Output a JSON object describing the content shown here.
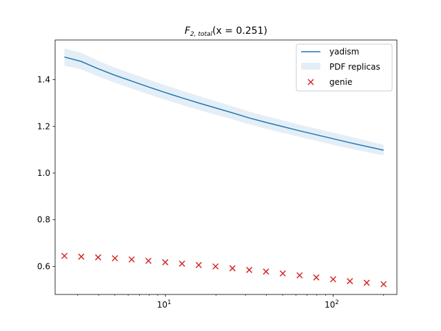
{
  "chart_data": {
    "type": "line",
    "title": {
      "base": "F",
      "sub": "2, total",
      "rest": "(x = 0.251)"
    },
    "xscale": "log",
    "xlim": [
      2.2,
      240
    ],
    "ylim": [
      0.48,
      1.57
    ],
    "x_ticks": [
      {
        "value": 10,
        "base": "10",
        "exp": "1"
      },
      {
        "value": 100,
        "base": "10",
        "exp": "2"
      }
    ],
    "y_ticks": [
      {
        "value": 0.6,
        "label": "0.6"
      },
      {
        "value": 0.8,
        "label": "0.8"
      },
      {
        "value": 1.0,
        "label": "1.0"
      },
      {
        "value": 1.2,
        "label": "1.2"
      },
      {
        "value": 1.4,
        "label": "1.4"
      }
    ],
    "legend": {
      "position": "top-right",
      "entries": [
        {
          "label": "yadism",
          "kind": "line"
        },
        {
          "label": "PDF replicas",
          "kind": "band"
        },
        {
          "label": "genie",
          "kind": "marker"
        }
      ]
    },
    "colors": {
      "line": "#1f77b4",
      "band": "#1f77b4",
      "marker": "#d62728"
    },
    "x": [
      2.5,
      3.15,
      3.97,
      5.0,
      6.29,
      7.92,
      9.98,
      12.56,
      15.8,
      19.9,
      25.1,
      31.6,
      39.8,
      50.1,
      63.1,
      79.4,
      100,
      125.9,
      158.5,
      200
    ],
    "series": [
      {
        "name": "yadism",
        "kind": "line",
        "values": [
          1.497,
          1.478,
          1.447,
          1.419,
          1.394,
          1.369,
          1.345,
          1.322,
          1.3,
          1.279,
          1.258,
          1.236,
          1.217,
          1.199,
          1.181,
          1.164,
          1.147,
          1.13,
          1.114,
          1.098
        ],
        "lower": [
          1.46,
          1.444,
          1.414,
          1.387,
          1.362,
          1.337,
          1.314,
          1.292,
          1.27,
          1.25,
          1.23,
          1.209,
          1.19,
          1.172,
          1.155,
          1.138,
          1.121,
          1.105,
          1.09,
          1.076
        ],
        "upper": [
          1.534,
          1.515,
          1.481,
          1.452,
          1.426,
          1.401,
          1.376,
          1.353,
          1.33,
          1.308,
          1.286,
          1.263,
          1.244,
          1.226,
          1.207,
          1.19,
          1.173,
          1.156,
          1.139,
          1.121
        ]
      },
      {
        "name": "genie",
        "kind": "marker",
        "values": [
          0.645,
          0.642,
          0.639,
          0.635,
          0.63,
          0.624,
          0.618,
          0.612,
          0.606,
          0.6,
          0.592,
          0.585,
          0.578,
          0.57,
          0.562,
          0.553,
          0.545,
          0.537,
          0.53,
          0.524
        ]
      }
    ]
  }
}
